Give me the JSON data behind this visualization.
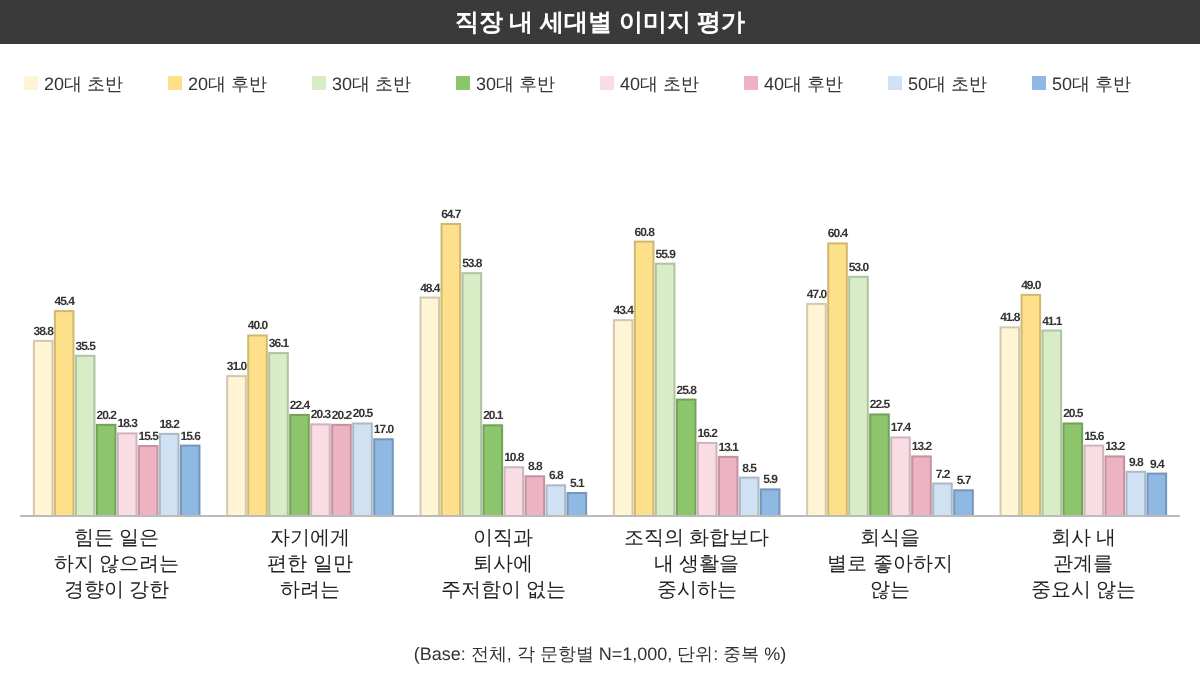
{
  "chart_data": {
    "type": "bar",
    "title": "직장 내 세대별 이미지 평가",
    "categories": [
      "힘든 일은\n하지 않으려는\n경향이 강한",
      "자기에게\n편한 일만\n하려는",
      "이직과\n퇴사에\n주저함이 없는",
      "조직의 화합보다\n내 생활을\n중시하는",
      "회식을\n별로 좋아하지\n않는",
      "회사 내\n관계를\n중요시 않는"
    ],
    "series": [
      {
        "name": "20대 초반",
        "color": "#fff4d4",
        "values": [
          38.8,
          31.0,
          48.4,
          43.4,
          47.0,
          41.8
        ],
        "value_labels": [
          "38.8",
          "31.0",
          "48.4",
          "43.4",
          "47.0",
          "41.8"
        ]
      },
      {
        "name": "20대 후반",
        "color": "#ffe08a",
        "values": [
          45.4,
          40.0,
          64.7,
          60.8,
          60.4,
          49.0
        ],
        "value_labels": [
          "45.4",
          "40.0",
          "64.7",
          "60.8",
          "60.4",
          "49.0"
        ]
      },
      {
        "name": "30대 초반",
        "color": "#d8ecc6",
        "values": [
          35.5,
          36.1,
          53.8,
          55.9,
          53.0,
          41.1
        ],
        "value_labels": [
          "35.5",
          "36.1",
          "53.8",
          "55.9",
          "53.0",
          "41.1"
        ]
      },
      {
        "name": "30대 후반",
        "color": "#8cc56b",
        "values": [
          20.2,
          22.4,
          20.1,
          25.8,
          22.5,
          20.5
        ],
        "value_labels": [
          "20.2",
          "22.4",
          "20.1",
          "25.8",
          "22.5",
          "20.5"
        ]
      },
      {
        "name": "40대 초반",
        "color": "#fadde4",
        "values": [
          18.3,
          20.3,
          10.8,
          16.2,
          17.4,
          15.6
        ],
        "value_labels": [
          "18.3",
          "20.3",
          "10.8",
          "16.2",
          "17.4",
          "15.6"
        ]
      },
      {
        "name": "40대 후반",
        "color": "#eeb3c2",
        "values": [
          15.5,
          20.2,
          8.8,
          13.1,
          13.2,
          13.2
        ],
        "value_labels": [
          "15.5",
          "20.2",
          "8.8",
          "13.1",
          "13.2",
          "13.2"
        ]
      },
      {
        "name": "50대 초반",
        "color": "#d0e1f3",
        "values": [
          18.2,
          20.5,
          6.8,
          8.5,
          7.2,
          9.8
        ],
        "value_labels": [
          "18.2",
          "20.5",
          "6.8",
          "8.5",
          "7.2",
          "9.8"
        ]
      },
      {
        "name": "50대 후반",
        "color": "#8fb8e3",
        "values": [
          15.6,
          17.0,
          5.1,
          5.9,
          5.7,
          9.4
        ],
        "value_labels": [
          "15.6",
          "17.0",
          "5.1",
          "5.9",
          "5.7",
          "9.4"
        ]
      }
    ],
    "legend": "top",
    "annotations": [
      "(Base: 전체, 각 문항별 N=1,000, 단위: 중복 %)"
    ]
  }
}
